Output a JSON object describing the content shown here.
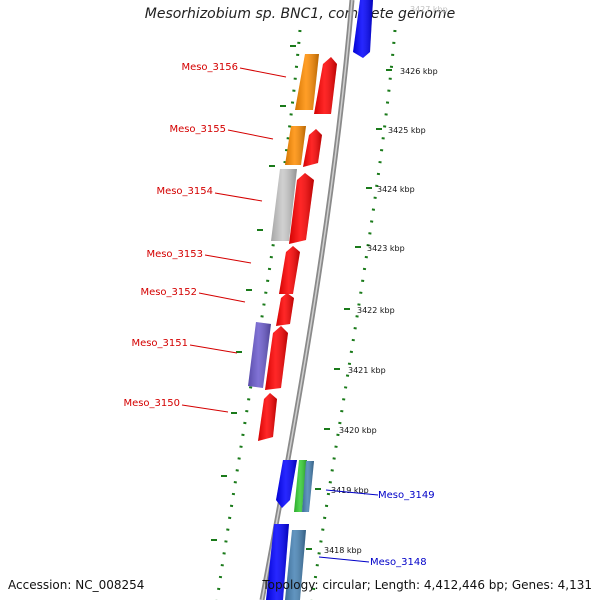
{
  "title": "Mesorhizobium sp. BNC1, complete genome",
  "footer": {
    "accession": "Accession: NC_008254",
    "topology": "Topology: circular; Length: 4,412,446 bp; Genes: 4,131"
  },
  "kbp_ticks": [
    {
      "label": "3427 kbp",
      "faded": true
    },
    {
      "label": "3426 kbp"
    },
    {
      "label": "3425 kbp"
    },
    {
      "label": "3424 kbp"
    },
    {
      "label": "3423 kbp"
    },
    {
      "label": "3422 kbp"
    },
    {
      "label": "3421 kbp"
    },
    {
      "label": "3420 kbp"
    },
    {
      "label": "3419 kbp"
    },
    {
      "label": "3418 kbp"
    }
  ],
  "gene_labels": [
    {
      "name": "Meso_3156",
      "color": "#d40000"
    },
    {
      "name": "Meso_3155",
      "color": "#d40000"
    },
    {
      "name": "Meso_3154",
      "color": "#d40000"
    },
    {
      "name": "Meso_3153",
      "color": "#d40000"
    },
    {
      "name": "Meso_3152",
      "color": "#d40000"
    },
    {
      "name": "Meso_3151",
      "color": "#d40000"
    },
    {
      "name": "Meso_3150",
      "color": "#d40000"
    },
    {
      "name": "Meso_3149",
      "color": "#0000c8"
    },
    {
      "name": "Meso_3148",
      "color": "#0000c8"
    }
  ],
  "colors": {
    "red": "#ff0000",
    "orange": "#ff8c00",
    "gray": "#c8c8c8",
    "purple": "#6a5acd",
    "blue": "#0000ff",
    "green": "#32cd32",
    "steelblue": "#4682b4",
    "backbone": "#8a8a8a",
    "ticks": "#1a7a1a"
  }
}
